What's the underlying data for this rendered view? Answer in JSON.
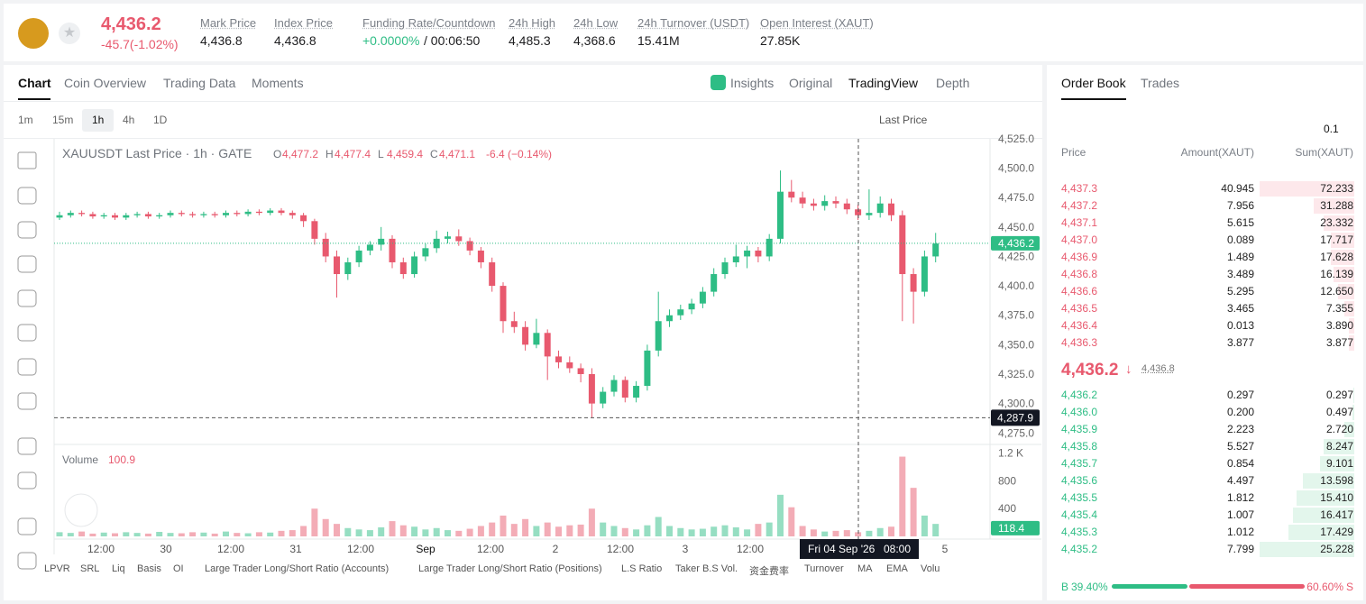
{
  "header": {
    "price": "4,436.2",
    "change": "-45.7(-1.02%)",
    "stats": [
      {
        "label": "Mark Price",
        "value": "4,436.8"
      },
      {
        "label": "Index Price",
        "value": "4,436.8"
      },
      {
        "label": "Funding Rate/Countdown",
        "value": "+0.0000%",
        "value2": "/ 00:06:50"
      },
      {
        "label": "24h High",
        "value": "4,485.3"
      },
      {
        "label": "24h Low",
        "value": "4,368.6"
      },
      {
        "label": "24h Turnover (USDT)",
        "value": "15.41M"
      },
      {
        "label": "Open Interest (XAUT)",
        "value": "27.85K"
      }
    ]
  },
  "tabs": [
    "Chart",
    "Coin Overview",
    "Trading Data",
    "Moments"
  ],
  "views": [
    "Insights",
    "Original",
    "TradingView",
    "Depth"
  ],
  "intervals": [
    "1m",
    "15m",
    "1h",
    "4h",
    "1D"
  ],
  "price_type": "Last Price",
  "legend": {
    "title": "XAUUSDT Last Price · 1h · GATE",
    "ohlc": [
      {
        "label": "O",
        "value": "4,477.2"
      },
      {
        "label": "H",
        "value": "4,477.4"
      },
      {
        "label": "L",
        "value": "4,459.4"
      },
      {
        "label": "C",
        "value": "4,471.1"
      }
    ],
    "change": "-6.4 (−0.14%)"
  },
  "chart": {
    "type": "candlestick",
    "candles": [
      [
        4458,
        4463,
        4456,
        4460
      ],
      [
        4460,
        4464,
        4458,
        4462
      ],
      [
        4462,
        4464,
        4459,
        4461
      ],
      [
        4461,
        4463,
        4457,
        4459
      ],
      [
        4459,
        4462,
        4457,
        4460
      ],
      [
        4460,
        4462,
        4456,
        4458
      ],
      [
        4458,
        4462,
        4456,
        4460
      ],
      [
        4460,
        4463,
        4458,
        4461
      ],
      [
        4461,
        4463,
        4457,
        4459
      ],
      [
        4459,
        4462,
        4457,
        4460
      ],
      [
        4460,
        4464,
        4458,
        4462
      ],
      [
        4462,
        4464,
        4459,
        4461
      ],
      [
        4461,
        4463,
        4458,
        4460
      ],
      [
        4460,
        4463,
        4458,
        4461
      ],
      [
        4461,
        4463,
        4458,
        4460
      ],
      [
        4460,
        4464,
        4458,
        4462
      ],
      [
        4462,
        4464,
        4459,
        4461
      ],
      [
        4461,
        4465,
        4459,
        4463
      ],
      [
        4463,
        4465,
        4460,
        4462
      ],
      [
        4462,
        4466,
        4460,
        4464
      ],
      [
        4464,
        4466,
        4460,
        4462
      ],
      [
        4462,
        4464,
        4457,
        4460
      ],
      [
        4460,
        4462,
        4450,
        4455
      ],
      [
        4455,
        4457,
        4435,
        4440
      ],
      [
        4440,
        4445,
        4420,
        4425
      ],
      [
        4425,
        4430,
        4390,
        4410
      ],
      [
        4410,
        4424,
        4405,
        4420
      ],
      [
        4420,
        4434,
        4416,
        4430
      ],
      [
        4430,
        4438,
        4426,
        4435
      ],
      [
        4435,
        4450,
        4430,
        4440
      ],
      [
        4440,
        4443,
        4415,
        4420
      ],
      [
        4420,
        4424,
        4406,
        4410
      ],
      [
        4410,
        4429,
        4407,
        4425
      ],
      [
        4425,
        4436,
        4421,
        4432
      ],
      [
        4432,
        4447,
        4428,
        4440
      ],
      [
        4440,
        4446,
        4436,
        4442
      ],
      [
        4442,
        4448,
        4434,
        4438
      ],
      [
        4438,
        4441,
        4426,
        4430
      ],
      [
        4430,
        4433,
        4415,
        4420
      ],
      [
        4420,
        4424,
        4395,
        4400
      ],
      [
        4400,
        4403,
        4360,
        4370
      ],
      [
        4370,
        4378,
        4360,
        4365
      ],
      [
        4365,
        4370,
        4345,
        4350
      ],
      [
        4350,
        4372,
        4347,
        4360
      ],
      [
        4360,
        4363,
        4320,
        4340
      ],
      [
        4340,
        4345,
        4330,
        4335
      ],
      [
        4335,
        4340,
        4326,
        4330
      ],
      [
        4330,
        4334,
        4318,
        4325
      ],
      [
        4325,
        4330,
        4288,
        4300
      ],
      [
        4300,
        4314,
        4296,
        4310
      ],
      [
        4310,
        4324,
        4306,
        4320
      ],
      [
        4320,
        4323,
        4301,
        4305
      ],
      [
        4305,
        4319,
        4301,
        4315
      ],
      [
        4315,
        4350,
        4311,
        4345
      ],
      [
        4345,
        4395,
        4340,
        4370
      ],
      [
        4370,
        4380,
        4365,
        4375
      ],
      [
        4375,
        4384,
        4371,
        4380
      ],
      [
        4380,
        4389,
        4376,
        4385
      ],
      [
        4385,
        4399,
        4381,
        4395
      ],
      [
        4395,
        4415,
        4391,
        4410
      ],
      [
        4410,
        4424,
        4406,
        4420
      ],
      [
        4420,
        4435,
        4416,
        4425
      ],
      [
        4425,
        4434,
        4415,
        4430
      ],
      [
        4430,
        4433,
        4420,
        4425
      ],
      [
        4425,
        4444,
        4421,
        4440
      ],
      [
        4440,
        4498,
        4436,
        4480
      ],
      [
        4480,
        4490,
        4471,
        4475
      ],
      [
        4475,
        4480,
        4466,
        4470
      ],
      [
        4470,
        4474,
        4464,
        4468
      ],
      [
        4468,
        4477,
        4464,
        4472
      ],
      [
        4472,
        4476,
        4466,
        4470
      ],
      [
        4470,
        4474,
        4461,
        4465
      ],
      [
        4465,
        4469,
        4456,
        4460
      ],
      [
        4460,
        4482,
        4456,
        4462
      ],
      [
        4462,
        4476,
        4458,
        4470
      ],
      [
        4470,
        4474,
        4455,
        4460
      ],
      [
        4460,
        4464,
        4370,
        4410
      ],
      [
        4410,
        4415,
        4368,
        4395
      ],
      [
        4395,
        4430,
        4391,
        4425
      ],
      [
        4425,
        4445,
        4420,
        4436
      ]
    ],
    "ylim": [
      4266,
      4528
    ],
    "yticks": [
      {
        "value": 4275,
        "label": "4,275.0"
      },
      {
        "value": 4300,
        "label": "4,300.0"
      },
      {
        "value": 4325,
        "label": "4,325.0"
      },
      {
        "value": 4350,
        "label": "4,350.0"
      },
      {
        "value": 4375,
        "label": "4,375.0"
      },
      {
        "value": 4400,
        "label": "4,400.0"
      },
      {
        "value": 4425,
        "label": "4,425.0"
      },
      {
        "value": 4450,
        "label": "4,450.0"
      },
      {
        "value": 4475,
        "label": "4,475.0"
      },
      {
        "value": 4500,
        "label": "4,500.0"
      },
      {
        "value": 4525,
        "label": "4,525.0"
      }
    ],
    "last_price": {
      "value": 4436.2,
      "label": "4,436.2"
    },
    "low_marker": {
      "value": 4287.9,
      "label": "4,287.9"
    },
    "up_color": "#2ebd85",
    "down_color": "#e8596e",
    "volume": {
      "title": "Volume",
      "current": "100.9",
      "last": {
        "value": 118.4,
        "label": "118.4"
      },
      "values": [
        60,
        50,
        70,
        40,
        55,
        45,
        60,
        50,
        40,
        65,
        50,
        45,
        60,
        55,
        40,
        70,
        50,
        45,
        60,
        55,
        80,
        90,
        150,
        400,
        250,
        180,
        120,
        100,
        90,
        130,
        220,
        160,
        140,
        100,
        120,
        90,
        80,
        110,
        150,
        200,
        300,
        180,
        250,
        150,
        200,
        140,
        160,
        170,
        400,
        200,
        150,
        120,
        100,
        160,
        280,
        150,
        120,
        100,
        110,
        140,
        160,
        130,
        100,
        180,
        200,
        600,
        420,
        150,
        100,
        70,
        80,
        90,
        60,
        80,
        120,
        140,
        1150,
        700,
        300,
        180
      ],
      "ylim": [
        0,
        1300
      ],
      "yticks": [
        400,
        800,
        {
          "value": 1200,
          "label": "1.2 K"
        }
      ]
    },
    "x_labels": [
      "12:00",
      "30",
      "12:00",
      "31",
      "12:00",
      "Sep",
      "12:00",
      "2",
      "12:00",
      "3",
      "12:00",
      "5"
    ],
    "crosshair": [
      "Fri 04 Sep '26",
      "08:00"
    ]
  },
  "indicators": [
    "LPVR",
    "SRL",
    "Liq",
    "Basis",
    "OI",
    "Large Trader Long/Short Ratio (Accounts)",
    "Large Trader Long/Short Ratio (Positions)",
    "L.S Ratio",
    "Taker B.S Vol.",
    "资金费率",
    "Turnover",
    "MA",
    "EMA",
    "Volu"
  ],
  "order_book": {
    "tabs": [
      "Order Book",
      "Trades"
    ],
    "precision": "0.1",
    "columns": [
      "Price",
      "Amount(XAUT)",
      "Sum(XAUT)"
    ],
    "asks": [
      [
        "4,437.3",
        "40.945",
        "72.233"
      ],
      [
        "4,437.2",
        "7.956",
        "31.288"
      ],
      [
        "4,437.1",
        "5.615",
        "23.332"
      ],
      [
        "4,437.0",
        "0.089",
        "17.717"
      ],
      [
        "4,436.9",
        "1.489",
        "17.628"
      ],
      [
        "4,436.8",
        "3.489",
        "16.139"
      ],
      [
        "4,436.6",
        "5.295",
        "12.650"
      ],
      [
        "4,436.5",
        "3.465",
        "7.355"
      ],
      [
        "4,436.4",
        "0.013",
        "3.890"
      ],
      [
        "4,436.3",
        "3.877",
        "3.877"
      ]
    ],
    "mid_price": "4,436.2",
    "mark_price": "4,436.8",
    "bids": [
      [
        "4,436.2",
        "0.297",
        "0.297"
      ],
      [
        "4,436.0",
        "0.200",
        "0.497"
      ],
      [
        "4,435.9",
        "2.223",
        "2.720"
      ],
      [
        "4,435.8",
        "5.527",
        "8.247"
      ],
      [
        "4,435.7",
        "0.854",
        "9.101"
      ],
      [
        "4,435.6",
        "4.497",
        "13.598"
      ],
      [
        "4,435.5",
        "1.812",
        "15.410"
      ],
      [
        "4,435.4",
        "1.007",
        "16.417"
      ],
      [
        "4,435.3",
        "1.012",
        "17.429"
      ],
      [
        "4,435.2",
        "7.799",
        "25.228"
      ]
    ],
    "buy_ratio": {
      "label": "B",
      "value": 39.4,
      "text": "39.40%"
    },
    "sell_ratio": {
      "label": "S",
      "value": 60.6,
      "text": "60.60%"
    }
  }
}
